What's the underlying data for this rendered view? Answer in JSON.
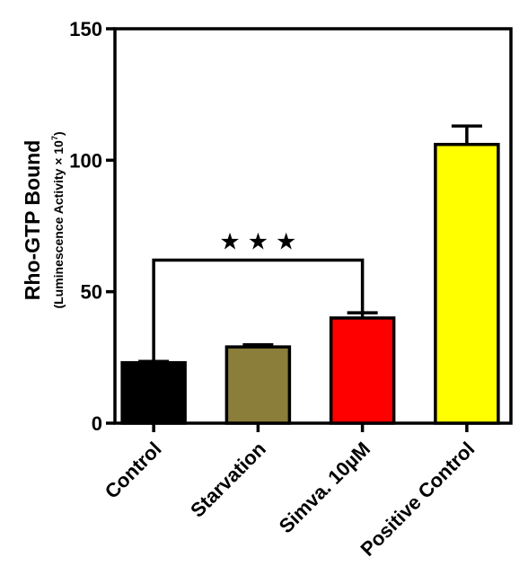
{
  "chart_data": {
    "type": "bar",
    "categories": [
      "Control",
      "Starvation",
      "Simva. 10µM",
      "Positive Control"
    ],
    "values": [
      23,
      29,
      40,
      106
    ],
    "errors": [
      0.5,
      0.8,
      2,
      7
    ],
    "colors": [
      "#000000",
      "#8B7D3A",
      "#FF0000",
      "#FFFF00"
    ],
    "ylabel": "Rho-GTP Bound",
    "ylabel_sub_prefix": "(Luminescence Activity × 10",
    "ylabel_sub_exp": "7",
    "ylabel_sub_suffix": ")",
    "ylim": [
      0,
      150
    ],
    "yticks": [
      "0",
      "50",
      "100",
      "150"
    ],
    "significance": {
      "between": [
        "Control",
        "Simva. 10µM"
      ],
      "level": 62,
      "label": "★★★"
    }
  }
}
